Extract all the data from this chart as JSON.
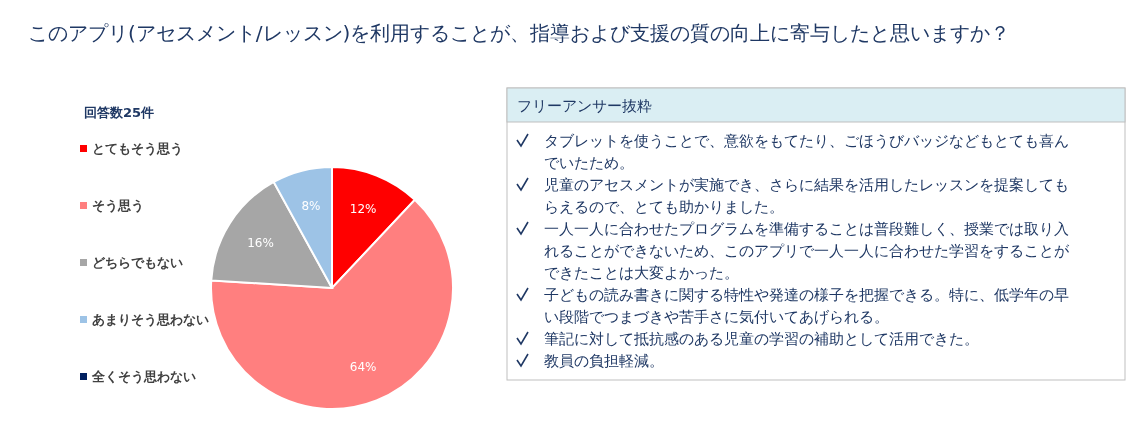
{
  "chart_data": [
    {
      "type": "pie",
      "title": "このアプリ(アセスメント/レッスン)を利用することが、指導および支援の質の向上に寄与したと思いますか？",
      "legend_title": "回答数25件",
      "categories": [
        "とてもそう思う",
        "そう思う",
        "どちらでもない",
        "あまりそう思わない",
        "全くそう思わない"
      ],
      "values": [
        12,
        64,
        16,
        8,
        0
      ],
      "colors": [
        "#ff0000",
        "#ff7f7f",
        "#a6a6a6",
        "#9dc3e6",
        "#002060"
      ],
      "value_labels": [
        "12%",
        "64%",
        "16%",
        "8%",
        null
      ],
      "legend": "left"
    },
    {
      "type": "other",
      "title": "フリーアンサー抜粋",
      "annotations": [
        "タブレットを使うことで、意欲をもてたり、ごほうびバッジなどもとても喜んでいたため。",
        "児童のアセスメントが実施でき、さらに結果を活用したレッスンを提案してもらえるので、とても助かりました。",
        "一人一人に合わせたプログラムを準備することは普段難しく、授業では取り入れることができないため、このアプリで一人一人に合わせた学習をすることができたことは大変よかった。",
        "子どもの読み書きに関する特性や発達の様子を把握できる。特に、低学年の早い段階でつまづきや苦手さに気付いてあげられる。",
        "筆記に対して抵抗感のある児童の学習の補助として活用できた。",
        "教員の負担軽減。"
      ]
    }
  ]
}
